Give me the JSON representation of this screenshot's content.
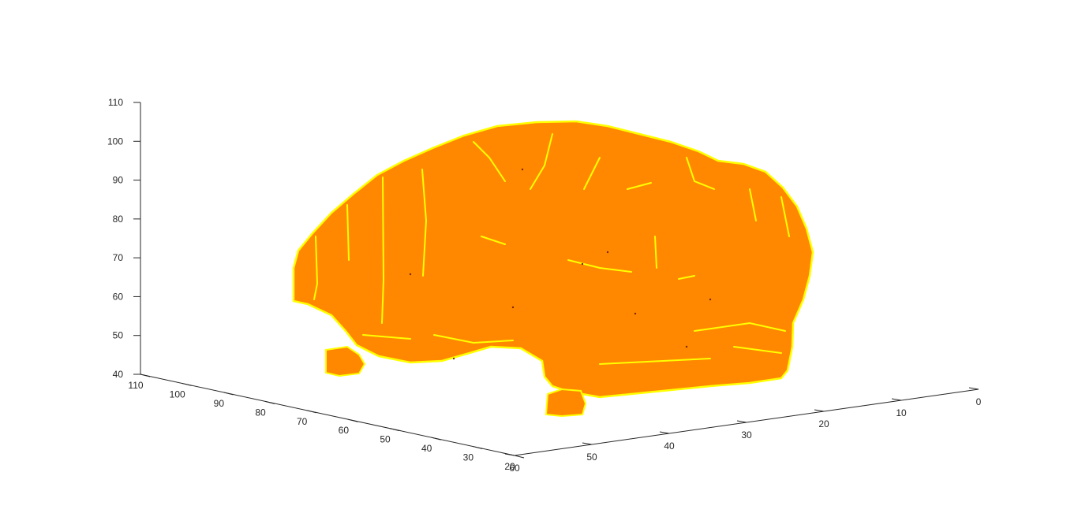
{
  "chart_data": {
    "type": "surface-3d",
    "title": "",
    "xlabel": "",
    "ylabel": "",
    "zlabel": "",
    "grid": false,
    "colors": {
      "surface_fill": "#FF8800",
      "surface_edge": "#FFFF00",
      "axis": "#262626",
      "background": "#FFFFFF"
    },
    "axes": {
      "z": {
        "range": [
          40,
          110
        ],
        "ticks": [
          40,
          50,
          60,
          70,
          80,
          90,
          100,
          110
        ],
        "tick_labels": [
          "40",
          "50",
          "60",
          "70",
          "80",
          "90",
          "100",
          "110"
        ]
      },
      "y": {
        "range": [
          20,
          110
        ],
        "ticks": [
          110,
          100,
          90,
          80,
          70,
          60,
          50,
          40,
          30,
          20
        ],
        "tick_labels": [
          "110",
          "100",
          "90",
          "80",
          "70",
          "60",
          "50",
          "40",
          "30",
          "20"
        ]
      },
      "x": {
        "range": [
          0,
          60
        ],
        "ticks": [
          0,
          10,
          20,
          30,
          40,
          50,
          60
        ],
        "tick_labels": [
          "0",
          "10",
          "20",
          "30",
          "40",
          "50",
          "60"
        ]
      }
    },
    "objects": [
      {
        "name": "brain-surface"
      },
      {
        "name": "small-blob-left"
      },
      {
        "name": "small-blob-bottom"
      }
    ]
  }
}
